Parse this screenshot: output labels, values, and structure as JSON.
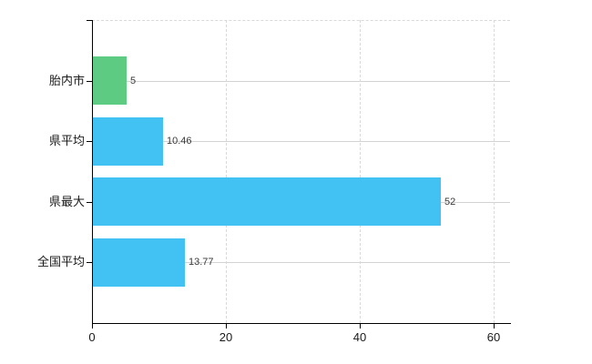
{
  "chart_data": {
    "type": "bar",
    "orientation": "horizontal",
    "title": "",
    "xlabel": "",
    "ylabel": "",
    "categories": [
      "胎内市",
      "県平均",
      "県最大",
      "全国平均"
    ],
    "values": [
      5,
      10.46,
      52,
      13.77
    ],
    "value_labels": [
      "5",
      "10.46",
      "52",
      "13.77"
    ],
    "bar_colors": [
      "#5ecb83",
      "#41c2f3",
      "#41c2f3",
      "#41c2f3"
    ],
    "xlim": [
      0,
      60
    ],
    "x_ticks": [
      0,
      20,
      40,
      60
    ],
    "x_tick_labels": [
      "0",
      "20",
      "40",
      "60"
    ],
    "grid": {
      "horizontal": "solid",
      "vertical": "dashed",
      "top_border": "dashed"
    },
    "legend_position": "none"
  },
  "colors": {
    "background": "#ffffff",
    "bar_green": "#5ecb83",
    "bar_blue": "#41c2f3",
    "grid_solid": "#d3d3d3",
    "grid_dashed": "#d9d9d9",
    "axis": "#000000",
    "value_text": "#3a3a3a",
    "label_text": "#1a1a1a"
  }
}
